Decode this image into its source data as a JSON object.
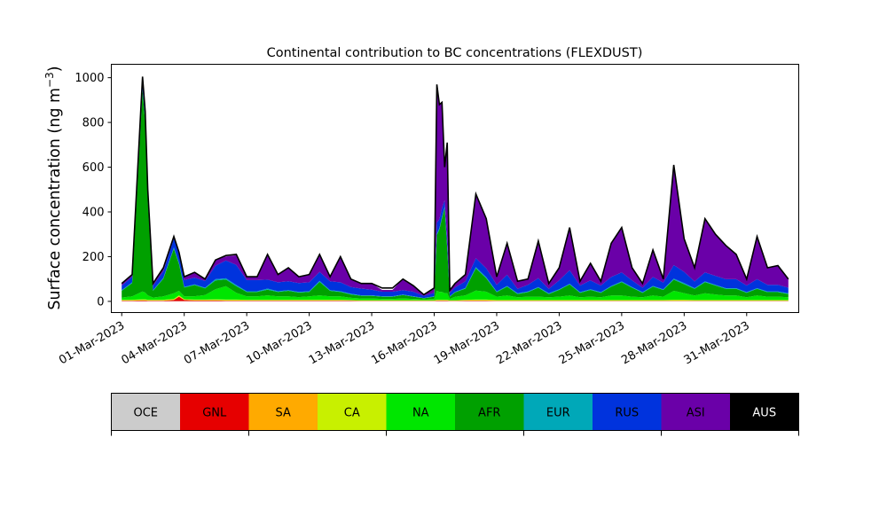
{
  "chart_data": {
    "type": "area",
    "stacked": true,
    "title": "Continental contribution to BC concentrations (FLEXDUST)",
    "ylabel": "Surface concentration (ng m",
    "ylabel_sup": "−3",
    "ylabel_close": ")",
    "xlabel": "",
    "x_start": "2023-02-28T12:00",
    "x_end": "2023-04-02T12:00",
    "ylim": [
      -50,
      1060
    ],
    "yticks": [
      0,
      200,
      400,
      600,
      800,
      1000
    ],
    "xtick_dates": [
      "2023-03-01",
      "2023-03-04",
      "2023-03-07",
      "2023-03-10",
      "2023-03-13",
      "2023-03-16",
      "2023-03-19",
      "2023-03-22",
      "2023-03-25",
      "2023-03-28",
      "2023-03-31"
    ],
    "xtick_labels": [
      "01-Mar-2023",
      "04-Mar-2023",
      "07-Mar-2023",
      "10-Mar-2023",
      "13-Mar-2023",
      "16-Mar-2023",
      "19-Mar-2023",
      "22-Mar-2023",
      "25-Mar-2023",
      "28-Mar-2023",
      "31-Mar-2023"
    ],
    "grid": false,
    "x": [
      "2023-03-01T00:00",
      "2023-03-01T12:00",
      "2023-03-02T00:00",
      "2023-03-02T03:00",
      "2023-03-02T06:00",
      "2023-03-02T12:00",
      "2023-03-03T00:00",
      "2023-03-03T12:00",
      "2023-03-03T18:00",
      "2023-03-04T00:00",
      "2023-03-04T12:00",
      "2023-03-05T00:00",
      "2023-03-05T12:00",
      "2023-03-06T00:00",
      "2023-03-06T12:00",
      "2023-03-07T00:00",
      "2023-03-07T12:00",
      "2023-03-08T00:00",
      "2023-03-08T12:00",
      "2023-03-09T00:00",
      "2023-03-09T12:00",
      "2023-03-10T00:00",
      "2023-03-10T12:00",
      "2023-03-11T00:00",
      "2023-03-11T12:00",
      "2023-03-12T00:00",
      "2023-03-12T12:00",
      "2023-03-13T00:00",
      "2023-03-13T12:00",
      "2023-03-14T00:00",
      "2023-03-14T12:00",
      "2023-03-15T00:00",
      "2023-03-15T12:00",
      "2023-03-16T00:00",
      "2023-03-16T03:00",
      "2023-03-16T06:00",
      "2023-03-16T09:00",
      "2023-03-16T12:00",
      "2023-03-16T15:00",
      "2023-03-16T18:00",
      "2023-03-17T00:00",
      "2023-03-17T12:00",
      "2023-03-18T00:00",
      "2023-03-18T12:00",
      "2023-03-19T00:00",
      "2023-03-19T12:00",
      "2023-03-20T00:00",
      "2023-03-20T12:00",
      "2023-03-21T00:00",
      "2023-03-21T12:00",
      "2023-03-22T00:00",
      "2023-03-22T12:00",
      "2023-03-23T00:00",
      "2023-03-23T12:00",
      "2023-03-24T00:00",
      "2023-03-24T12:00",
      "2023-03-25T00:00",
      "2023-03-25T12:00",
      "2023-03-26T00:00",
      "2023-03-26T12:00",
      "2023-03-27T00:00",
      "2023-03-27T12:00",
      "2023-03-28T00:00",
      "2023-03-28T12:00",
      "2023-03-29T00:00",
      "2023-03-29T12:00",
      "2023-03-30T00:00",
      "2023-03-30T12:00",
      "2023-03-31T00:00",
      "2023-03-31T12:00",
      "2023-04-01T00:00",
      "2023-04-01T12:00",
      "2023-04-02T00:00"
    ],
    "total": [
      80,
      120,
      1005,
      850,
      500,
      80,
      150,
      290,
      220,
      110,
      130,
      100,
      185,
      205,
      210,
      110,
      110,
      210,
      120,
      150,
      110,
      120,
      210,
      110,
      200,
      100,
      80,
      80,
      60,
      60,
      100,
      70,
      30,
      60,
      970,
      880,
      890,
      600,
      710,
      50,
      80,
      120,
      480,
      370,
      110,
      260,
      90,
      100,
      270,
      80,
      150,
      330,
      90,
      170,
      90,
      260,
      330,
      150,
      80,
      230,
      100,
      610,
      280,
      150,
      370,
      300,
      250,
      210,
      100,
      290,
      150,
      160,
      100
    ],
    "series": [
      {
        "name": "OCE",
        "color": "#cccccc",
        "values": [
          1,
          1,
          1,
          1,
          1,
          1,
          1,
          1,
          1,
          1,
          1,
          1,
          1,
          1,
          1,
          1,
          1,
          1,
          1,
          1,
          1,
          1,
          1,
          1,
          1,
          1,
          1,
          1,
          1,
          1,
          1,
          1,
          1,
          1,
          1,
          1,
          1,
          1,
          1,
          1,
          1,
          1,
          1,
          1,
          1,
          1,
          1,
          1,
          1,
          1,
          1,
          1,
          1,
          1,
          1,
          1,
          1,
          1,
          1,
          1,
          1,
          1,
          1,
          1,
          1,
          1,
          1,
          1,
          1,
          1,
          1,
          1,
          1
        ]
      },
      {
        "name": "GNL",
        "color": "#e60000",
        "values": [
          2,
          2,
          3,
          3,
          2,
          2,
          2,
          5,
          20,
          5,
          3,
          3,
          3,
          2,
          2,
          2,
          2,
          2,
          2,
          2,
          2,
          2,
          2,
          2,
          2,
          2,
          1,
          1,
          1,
          1,
          1,
          1,
          1,
          1,
          2,
          2,
          2,
          2,
          2,
          1,
          1,
          2,
          2,
          2,
          1,
          1,
          1,
          1,
          1,
          1,
          1,
          1,
          1,
          1,
          1,
          1,
          1,
          1,
          1,
          1,
          1,
          1,
          1,
          1,
          1,
          1,
          1,
          1,
          1,
          1,
          1,
          1,
          1
        ]
      },
      {
        "name": "SA",
        "color": "#ffaa00",
        "values": [
          1,
          1,
          1,
          1,
          1,
          1,
          1,
          1,
          2,
          1,
          1,
          1,
          1,
          1,
          1,
          1,
          1,
          1,
          1,
          1,
          1,
          1,
          1,
          1,
          1,
          1,
          1,
          1,
          1,
          1,
          1,
          1,
          1,
          1,
          1,
          1,
          1,
          1,
          1,
          1,
          1,
          1,
          1,
          1,
          1,
          1,
          1,
          1,
          1,
          1,
          1,
          1,
          1,
          1,
          1,
          1,
          1,
          1,
          1,
          1,
          1,
          1,
          1,
          1,
          1,
          1,
          1,
          1,
          1,
          1,
          1,
          1,
          1
        ]
      },
      {
        "name": "CA",
        "color": "#c8f000",
        "values": [
          3,
          3,
          4,
          4,
          3,
          3,
          3,
          4,
          4,
          3,
          3,
          3,
          4,
          4,
          4,
          3,
          3,
          3,
          3,
          3,
          3,
          3,
          3,
          3,
          3,
          2,
          2,
          2,
          2,
          2,
          2,
          2,
          2,
          2,
          3,
          3,
          3,
          3,
          3,
          2,
          2,
          3,
          4,
          4,
          3,
          3,
          3,
          3,
          3,
          3,
          3,
          3,
          3,
          3,
          3,
          3,
          3,
          3,
          3,
          3,
          3,
          4,
          4,
          3,
          3,
          3,
          3,
          3,
          3,
          3,
          3,
          3,
          3
        ]
      },
      {
        "name": "NA",
        "color": "#00e600",
        "values": [
          10,
          15,
          35,
          30,
          20,
          10,
          15,
          25,
          20,
          12,
          15,
          20,
          45,
          60,
          30,
          15,
          15,
          20,
          15,
          15,
          12,
          15,
          20,
          15,
          15,
          10,
          8,
          8,
          6,
          6,
          8,
          6,
          4,
          6,
          40,
          35,
          35,
          30,
          30,
          6,
          15,
          20,
          40,
          35,
          15,
          20,
          12,
          15,
          15,
          12,
          15,
          20,
          12,
          15,
          12,
          20,
          20,
          15,
          12,
          20,
          15,
          40,
          30,
          20,
          30,
          25,
          20,
          20,
          12,
          20,
          15,
          15,
          12
        ]
      },
      {
        "name": "AFR",
        "color": "#00a000",
        "values": [
          30,
          60,
          900,
          760,
          430,
          30,
          80,
          200,
          120,
          40,
          50,
          30,
          40,
          30,
          30,
          20,
          20,
          25,
          20,
          25,
          20,
          20,
          60,
          25,
          20,
          15,
          12,
          12,
          10,
          10,
          15,
          10,
          5,
          10,
          250,
          280,
          330,
          380,
          200,
          10,
          20,
          30,
          100,
          60,
          20,
          40,
          15,
          20,
          40,
          15,
          30,
          50,
          20,
          30,
          20,
          40,
          60,
          40,
          20,
          40,
          30,
          50,
          40,
          30,
          50,
          40,
          30,
          30,
          20,
          30,
          20,
          20,
          15
        ]
      },
      {
        "name": "EUR",
        "color": "#00a8b8",
        "values": [
          3,
          3,
          5,
          5,
          4,
          3,
          3,
          5,
          5,
          3,
          3,
          3,
          5,
          5,
          5,
          3,
          3,
          5,
          3,
          3,
          3,
          3,
          5,
          3,
          3,
          3,
          2,
          2,
          2,
          2,
          2,
          2,
          1,
          2,
          5,
          5,
          5,
          5,
          5,
          2,
          2,
          3,
          5,
          5,
          3,
          3,
          3,
          3,
          3,
          3,
          3,
          3,
          3,
          3,
          3,
          3,
          3,
          3,
          3,
          3,
          3,
          5,
          5,
          3,
          3,
          3,
          3,
          3,
          3,
          3,
          3,
          3,
          3
        ]
      },
      {
        "name": "RUS",
        "color": "#0033dd",
        "values": [
          20,
          25,
          40,
          30,
          25,
          20,
          30,
          40,
          40,
          30,
          30,
          30,
          60,
          80,
          90,
          50,
          50,
          40,
          40,
          40,
          40,
          40,
          40,
          40,
          40,
          30,
          30,
          25,
          20,
          20,
          20,
          20,
          10,
          15,
          50,
          40,
          40,
          30,
          40,
          15,
          20,
          30,
          40,
          40,
          30,
          50,
          20,
          30,
          40,
          20,
          40,
          60,
          30,
          40,
          30,
          40,
          40,
          30,
          20,
          40,
          30,
          60,
          50,
          30,
          40,
          40,
          40,
          40,
          30,
          40,
          30,
          30,
          25
        ]
      },
      {
        "name": "ASI",
        "color": "#6a00a8",
        "values": [
          10,
          10,
          16,
          15,
          14,
          10,
          15,
          9,
          8,
          15,
          24,
          9,
          26,
          18,
          43,
          15,
          15,
          113,
          35,
          60,
          28,
          35,
          77,
          20,
          114,
          36,
          23,
          28,
          8,
          8,
          51,
          27,
          5,
          22,
          618,
          513,
          473,
          146,
          428,
          12,
          18,
          30,
          286,
          217,
          35,
          140,
          34,
          23,
          165,
          23,
          56,
          188,
          16,
          75,
          17,
          150,
          200,
          55,
          19,
          120,
          15,
          447,
          145,
          58,
          240,
          186,
          150,
          111,
          28,
          190,
          75,
          85,
          41
        ]
      },
      {
        "name": "AUS",
        "color": "#000000",
        "values": [
          0,
          0,
          0,
          0,
          0,
          0,
          0,
          0,
          0,
          0,
          0,
          0,
          0,
          0,
          0,
          0,
          0,
          0,
          0,
          0,
          0,
          0,
          0,
          0,
          0,
          0,
          0,
          0,
          0,
          0,
          0,
          0,
          0,
          0,
          0,
          0,
          0,
          0,
          0,
          0,
          0,
          0,
          0,
          0,
          0,
          0,
          0,
          0,
          0,
          0,
          0,
          0,
          0,
          0,
          0,
          0,
          0,
          0,
          0,
          0,
          0,
          0,
          0,
          0,
          0,
          0,
          0,
          0,
          0,
          0,
          0,
          0,
          0
        ]
      }
    ],
    "legend": {
      "placement": "bottom",
      "labels": [
        "OCE",
        "GNL",
        "SA",
        "CA",
        "NA",
        "AFR",
        "EUR",
        "RUS",
        "ASI",
        "AUS"
      ],
      "colors": [
        "#cccccc",
        "#e60000",
        "#ffaa00",
        "#c8f000",
        "#00e600",
        "#00a000",
        "#00a8b8",
        "#0033dd",
        "#6a00a8",
        "#000000"
      ],
      "text_colors": [
        "#000000",
        "#000000",
        "#000000",
        "#000000",
        "#000000",
        "#000000",
        "#000000",
        "#000000",
        "#000000",
        "#ffffff"
      ]
    }
  }
}
